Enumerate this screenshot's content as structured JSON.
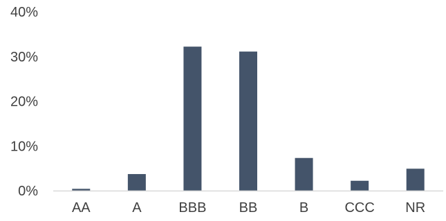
{
  "chart_data": {
    "type": "bar",
    "categories": [
      "AA",
      "A",
      "BBB",
      "BB",
      "B",
      "CCC",
      "NR"
    ],
    "values": [
      0.4,
      3.7,
      32.2,
      31.1,
      7.3,
      2.2,
      4.9
    ],
    "title": "",
    "xlabel": "",
    "ylabel": "",
    "ylim": [
      0,
      40
    ],
    "yticks": [
      0,
      10,
      20,
      30,
      40
    ],
    "ytick_labels": [
      "0%",
      "10%",
      "20%",
      "30%",
      "40%"
    ],
    "grid": false,
    "legend": "none",
    "bar_color": "#44546a",
    "axis_color": "#d9d9d9",
    "text_color": "#404040"
  }
}
